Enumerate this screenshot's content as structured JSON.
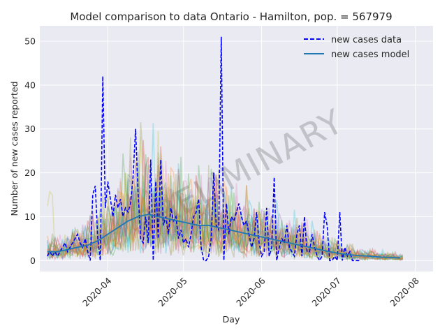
{
  "chart_data": {
    "type": "line",
    "title": "Model comparison to data Ontario - Hamilton, pop. = 567979",
    "xlabel": "Day",
    "ylabel": "Number of new cases reported",
    "xlim": [
      "2020-03-05",
      "2020-08-08"
    ],
    "ylim": [
      -2.5,
      53.5
    ],
    "grid": true,
    "watermark": "PRELIMINARY",
    "legend_position": "top-right",
    "x_ticks": [
      "2020-04",
      "2020-05",
      "2020-06",
      "2020-07",
      "2020-08"
    ],
    "y_ticks": [
      0,
      10,
      20,
      30,
      40,
      50
    ],
    "series": [
      {
        "name": "new cases data",
        "style": "dashed",
        "color": "#0000ff",
        "x": [
          "2020-03-08",
          "2020-03-09",
          "2020-03-10",
          "2020-03-11",
          "2020-03-12",
          "2020-03-13",
          "2020-03-14",
          "2020-03-15",
          "2020-03-16",
          "2020-03-17",
          "2020-03-18",
          "2020-03-19",
          "2020-03-20",
          "2020-03-21",
          "2020-03-22",
          "2020-03-23",
          "2020-03-24",
          "2020-03-25",
          "2020-03-26",
          "2020-03-27",
          "2020-03-28",
          "2020-03-29",
          "2020-03-30",
          "2020-03-31",
          "2020-04-01",
          "2020-04-02",
          "2020-04-03",
          "2020-04-04",
          "2020-04-05",
          "2020-04-06",
          "2020-04-07",
          "2020-04-08",
          "2020-04-09",
          "2020-04-10",
          "2020-04-11",
          "2020-04-12",
          "2020-04-13",
          "2020-04-14",
          "2020-04-15",
          "2020-04-16",
          "2020-04-17",
          "2020-04-18",
          "2020-04-19",
          "2020-04-20",
          "2020-04-21",
          "2020-04-22",
          "2020-04-23",
          "2020-04-24",
          "2020-04-25",
          "2020-04-26",
          "2020-04-27",
          "2020-04-28",
          "2020-04-29",
          "2020-04-30",
          "2020-05-01",
          "2020-05-02",
          "2020-05-03",
          "2020-05-04",
          "2020-05-05",
          "2020-05-06",
          "2020-05-07",
          "2020-05-08",
          "2020-05-09",
          "2020-05-10",
          "2020-05-11",
          "2020-05-12",
          "2020-05-13",
          "2020-05-14",
          "2020-05-15",
          "2020-05-16",
          "2020-05-17",
          "2020-05-18",
          "2020-05-19",
          "2020-05-20",
          "2020-05-21",
          "2020-05-22",
          "2020-05-23",
          "2020-05-24",
          "2020-05-25",
          "2020-05-26",
          "2020-05-27",
          "2020-05-28",
          "2020-05-29",
          "2020-05-30",
          "2020-05-31",
          "2020-06-01",
          "2020-06-02",
          "2020-06-03",
          "2020-06-04",
          "2020-06-05",
          "2020-06-06",
          "2020-06-07",
          "2020-06-08",
          "2020-06-09",
          "2020-06-10",
          "2020-06-11",
          "2020-06-12",
          "2020-06-13",
          "2020-06-14",
          "2020-06-15",
          "2020-06-16",
          "2020-06-17",
          "2020-06-18",
          "2020-06-19",
          "2020-06-20",
          "2020-06-21",
          "2020-06-22",
          "2020-06-23",
          "2020-06-24",
          "2020-06-25",
          "2020-06-26",
          "2020-06-27",
          "2020-06-28",
          "2020-06-29",
          "2020-06-30",
          "2020-07-01",
          "2020-07-02",
          "2020-07-03",
          "2020-07-04",
          "2020-07-05",
          "2020-07-06",
          "2020-07-07",
          "2020-07-08",
          "2020-07-09",
          "2020-07-10"
        ],
        "values": [
          1,
          2,
          1,
          2,
          1,
          2,
          3,
          4,
          2,
          3,
          4,
          5,
          6,
          4,
          3,
          5,
          2,
          0,
          15,
          17,
          5,
          0,
          42,
          12,
          18,
          14,
          10,
          15,
          12,
          14,
          10,
          12,
          11,
          13,
          19,
          30,
          15,
          5,
          4,
          10,
          4,
          23,
          0,
          18,
          5,
          23,
          8,
          10,
          6,
          12,
          9,
          10,
          5,
          7,
          4,
          5,
          3,
          6,
          10,
          11,
          14,
          3,
          0,
          0,
          1,
          5,
          20,
          8,
          7,
          51,
          0,
          13,
          6,
          10,
          9,
          11,
          13,
          10,
          8,
          9,
          6,
          3,
          5,
          11,
          4,
          1,
          2,
          12,
          1,
          3,
          19,
          0,
          3,
          5,
          4,
          8,
          3,
          2,
          1,
          6,
          8,
          1,
          10,
          2,
          2,
          6,
          3,
          1,
          0,
          1,
          11,
          8,
          0,
          0,
          1,
          0,
          11,
          0,
          3,
          1,
          2,
          0,
          0,
          0,
          0
        ]
      },
      {
        "name": "new cases model",
        "style": "solid",
        "color": "#1f77b4",
        "x": [
          "2020-03-08",
          "2020-03-12",
          "2020-03-16",
          "2020-03-20",
          "2020-03-24",
          "2020-03-28",
          "2020-04-01",
          "2020-04-05",
          "2020-04-09",
          "2020-04-13",
          "2020-04-17",
          "2020-04-21",
          "2020-04-25",
          "2020-04-29",
          "2020-05-03",
          "2020-05-07",
          "2020-05-11",
          "2020-05-15",
          "2020-05-19",
          "2020-05-23",
          "2020-05-27",
          "2020-05-31",
          "2020-06-04",
          "2020-06-08",
          "2020-06-12",
          "2020-06-16",
          "2020-06-20",
          "2020-06-24",
          "2020-06-28",
          "2020-07-02",
          "2020-07-06",
          "2020-07-10",
          "2020-07-14",
          "2020-07-18",
          "2020-07-22",
          "2020-07-26"
        ],
        "values": [
          2,
          2,
          2.5,
          3,
          3.5,
          4.5,
          6,
          7.5,
          9,
          10,
          10.5,
          10,
          9.5,
          9,
          8.5,
          8,
          8,
          7.5,
          7,
          6.5,
          6,
          5.5,
          5,
          4.5,
          4,
          3.5,
          3,
          2.5,
          2,
          1.6,
          1.3,
          1.1,
          1,
          0.8,
          0.7,
          0.6
        ]
      }
    ],
    "ensemble_colors": [
      "#d62728",
      "#e377c2",
      "#2ca02c",
      "#8c8c3c",
      "#9467bd",
      "#bcbd22",
      "#ff7f0e",
      "#17becf"
    ]
  }
}
